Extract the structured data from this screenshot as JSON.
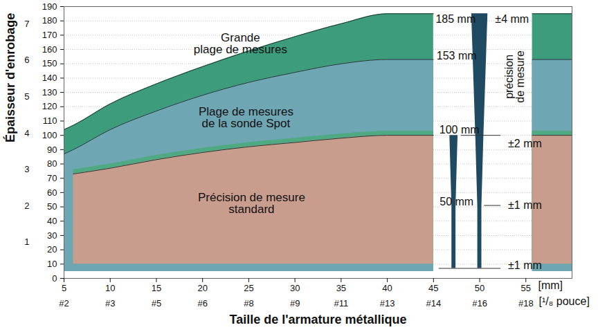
{
  "chart_data": {
    "type": "area",
    "xlabel": "Taille de l'armature métallique",
    "ylabel": "Épaisseur d'enrobage",
    "x": [
      5,
      6,
      10,
      15,
      20,
      25,
      30,
      35,
      40,
      45,
      50,
      55.7,
      60
    ],
    "series": [
      {
        "name": "Grande\nplage de mesures",
        "color": "#3d9c7c",
        "base": 5,
        "values": [
          104,
          107,
          122,
          136,
          148,
          159,
          169,
          178,
          185,
          185,
          null,
          185,
          185
        ],
        "label_x": 24.1,
        "label_y": 164
      },
      {
        "name": "Plage de mesures\nde la sonde Spot",
        "color": "#6fa6b3",
        "base": 5,
        "values": [
          87,
          90,
          104,
          117,
          128,
          137,
          144,
          150,
          153,
          153,
          null,
          153,
          153
        ],
        "label_x": 24.7,
        "label_y": 112.6
      },
      {
        "color": "#4fa983",
        "base": 10,
        "values": [
          null,
          76,
          80,
          86,
          91,
          95,
          98,
          101,
          103,
          103,
          null,
          103,
          103
        ]
      },
      {
        "name": "Précision de mesure\nstandard",
        "color": "#c99d8e",
        "base": 10,
        "values": [
          null,
          73,
          77,
          83,
          88,
          92,
          95,
          98,
          100,
          100,
          null,
          100,
          100
        ],
        "label_x": 25.3,
        "label_y": 52.6
      }
    ],
    "xlim": [
      5,
      60
    ],
    "xticks": [
      5,
      10,
      15,
      20,
      25,
      30,
      35,
      40,
      45,
      50,
      55
    ],
    "xtick_sublabels": [
      "#2",
      "#3",
      "#5",
      "#6",
      "#8",
      "#9",
      "#11",
      "#13",
      "#14",
      "#16",
      "#18"
    ],
    "x_units": [
      "[mm]",
      "[¹/₈ pouce]"
    ],
    "ylim": [
      0,
      190
    ],
    "yticks": [
      0,
      10,
      20,
      30,
      40,
      50,
      60,
      70,
      80,
      90,
      100,
      110,
      120,
      130,
      140,
      150,
      160,
      170,
      180,
      190
    ],
    "y2lim": [
      0,
      7.48
    ],
    "y2ticks": [
      1,
      2,
      3,
      4,
      5,
      6,
      7
    ],
    "grid": true,
    "wedges": [
      {
        "x": 47.2,
        "color": "#1f4a62",
        "depth": [
          7,
          50,
          100
        ],
        "accuracy": [
          1,
          1,
          2
        ]
      },
      {
        "x": 50,
        "color": "#1f4a62",
        "depth": [
          7,
          50,
          100,
          185
        ],
        "accuracy": [
          1,
          1,
          2,
          4
        ]
      }
    ],
    "guides": [
      {
        "y": 100,
        "x": [
          48,
          52.3
        ],
        "line_style": "dashed"
      },
      {
        "y": 51,
        "x": [
          50.5,
          52.3
        ],
        "line_style": "dashed"
      },
      {
        "y": 7,
        "x": [
          45.6,
          52.3
        ],
        "line_style": "dashed"
      }
    ],
    "annotations": [
      {
        "text": "185 mm",
        "x": 47.4,
        "y": 181
      },
      {
        "text": "±4 mm",
        "x": 53.5,
        "y": 181
      },
      {
        "text": "153 mm",
        "x": 47.5,
        "y": 155.5
      },
      {
        "text": "100 mm",
        "x": 47.8,
        "y": 104
      },
      {
        "text": "50 mm",
        "x": 47.5,
        "y": 53.6
      },
      {
        "text": "±2 mm",
        "x": 54.9,
        "y": 94
      },
      {
        "text": "±1 mm",
        "x": 54.9,
        "y": 51
      },
      {
        "text": "±1 mm",
        "x": 54.9,
        "y": 9
      }
    ],
    "vertical_annotation": {
      "text": "précision\nde mesure",
      "x": 53.8,
      "y": 141
    }
  }
}
